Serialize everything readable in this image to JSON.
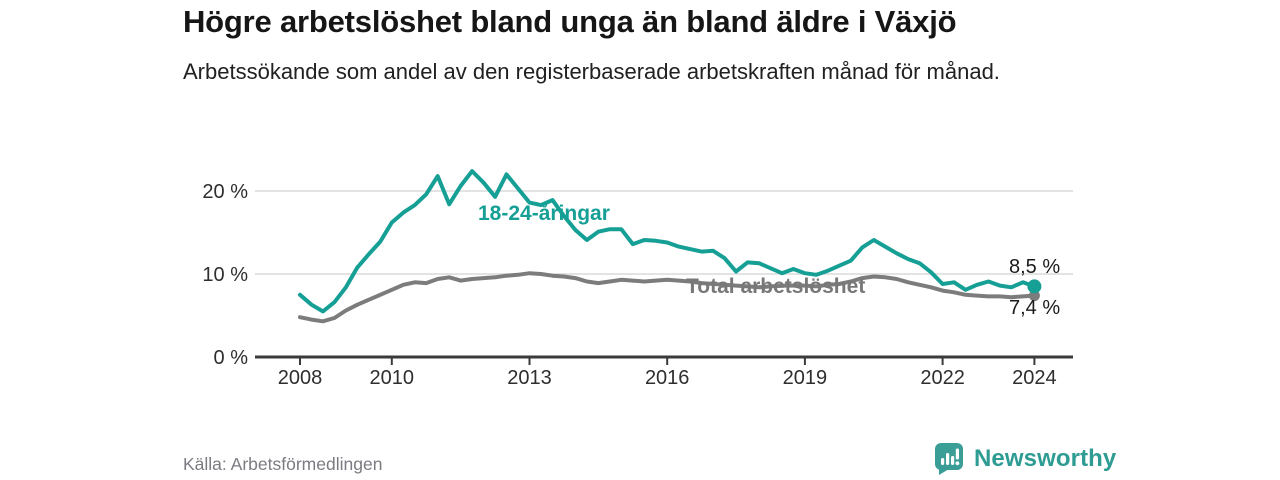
{
  "header": {
    "title": "Högre arbetslöshet bland unga än bland äldre i Växjö",
    "subtitle": "Arbetssökande som andel av den registerbaserade arbetskraften månad för månad."
  },
  "footer": {
    "source": "Källa: Arbetsförmedlingen",
    "brand": "Newsworthy"
  },
  "colors": {
    "young_line": "#169f95",
    "total_line": "#7c7c7c",
    "grid": "#dadada",
    "axis": "#3a3a3a",
    "tick_label": "#2e2e2e",
    "logo_teal": "#2f9c94"
  },
  "chart_data": {
    "type": "line",
    "unit": "%",
    "x": [
      2008.0,
      2008.25,
      2008.5,
      2008.75,
      2009.0,
      2009.25,
      2009.5,
      2009.75,
      2010.0,
      2010.25,
      2010.5,
      2010.75,
      2011.0,
      2011.25,
      2011.5,
      2011.75,
      2012.0,
      2012.25,
      2012.5,
      2012.75,
      2013.0,
      2013.25,
      2013.5,
      2013.75,
      2014.0,
      2014.25,
      2014.5,
      2014.75,
      2015.0,
      2015.25,
      2015.5,
      2015.75,
      2016.0,
      2016.25,
      2016.5,
      2016.75,
      2017.0,
      2017.25,
      2017.5,
      2017.75,
      2018.0,
      2018.25,
      2018.5,
      2018.75,
      2019.0,
      2019.25,
      2019.5,
      2019.75,
      2020.0,
      2020.25,
      2020.5,
      2020.75,
      2021.0,
      2021.25,
      2021.5,
      2021.75,
      2022.0,
      2022.25,
      2022.5,
      2022.75,
      2023.0,
      2023.25,
      2023.5,
      2023.75,
      2024.0
    ],
    "series": [
      {
        "name": "18-24-åringar",
        "color": "#169f95",
        "end_label": "8,5 %",
        "values": [
          7.5,
          6.3,
          5.5,
          6.6,
          8.4,
          10.8,
          12.4,
          13.9,
          16.2,
          17.4,
          18.3,
          19.6,
          21.8,
          18.4,
          20.6,
          22.4,
          21.0,
          19.3,
          22.0,
          20.3,
          18.6,
          18.3,
          18.9,
          17.0,
          15.3,
          14.1,
          15.1,
          15.4,
          15.4,
          13.6,
          14.1,
          14.0,
          13.8,
          13.3,
          13.0,
          12.7,
          12.8,
          11.9,
          10.3,
          11.4,
          11.3,
          10.7,
          10.1,
          10.6,
          10.1,
          9.9,
          10.4,
          11.0,
          11.6,
          13.2,
          14.1,
          13.3,
          12.5,
          11.8,
          11.3,
          10.2,
          8.8,
          9.0,
          8.1,
          8.7,
          9.1,
          8.6,
          8.4,
          9.0,
          8.5
        ]
      },
      {
        "name": "Total arbetslöshet",
        "color": "#7c7c7c",
        "end_label": "7,4 %",
        "values": [
          4.8,
          4.5,
          4.3,
          4.7,
          5.6,
          6.3,
          6.9,
          7.5,
          8.1,
          8.7,
          9.0,
          8.9,
          9.4,
          9.6,
          9.2,
          9.4,
          9.5,
          9.6,
          9.8,
          9.9,
          10.1,
          10.0,
          9.8,
          9.7,
          9.5,
          9.1,
          8.9,
          9.1,
          9.3,
          9.2,
          9.1,
          9.2,
          9.3,
          9.2,
          9.1,
          8.9,
          8.8,
          8.7,
          8.6,
          8.5,
          8.4,
          8.5,
          8.6,
          8.6,
          8.6,
          8.5,
          8.7,
          8.8,
          9.1,
          9.5,
          9.7,
          9.6,
          9.4,
          9.0,
          8.7,
          8.4,
          8.0,
          7.8,
          7.5,
          7.4,
          7.3,
          7.3,
          7.2,
          7.3,
          7.4
        ]
      }
    ],
    "yticks": [
      {
        "value": 0,
        "label": "0 %"
      },
      {
        "value": 10,
        "label": "10 %"
      },
      {
        "value": 20,
        "label": "20 %"
      }
    ],
    "xticks": [
      {
        "value": 2008,
        "label": "2008"
      },
      {
        "value": 2010,
        "label": "2010"
      },
      {
        "value": 2013,
        "label": "2013"
      },
      {
        "value": 2016,
        "label": "2016"
      },
      {
        "value": 2019,
        "label": "2019"
      },
      {
        "value": 2022,
        "label": "2022"
      },
      {
        "value": 2024,
        "label": "2024"
      }
    ],
    "ylim": [
      0,
      24
    ],
    "grid": "horizontal"
  }
}
